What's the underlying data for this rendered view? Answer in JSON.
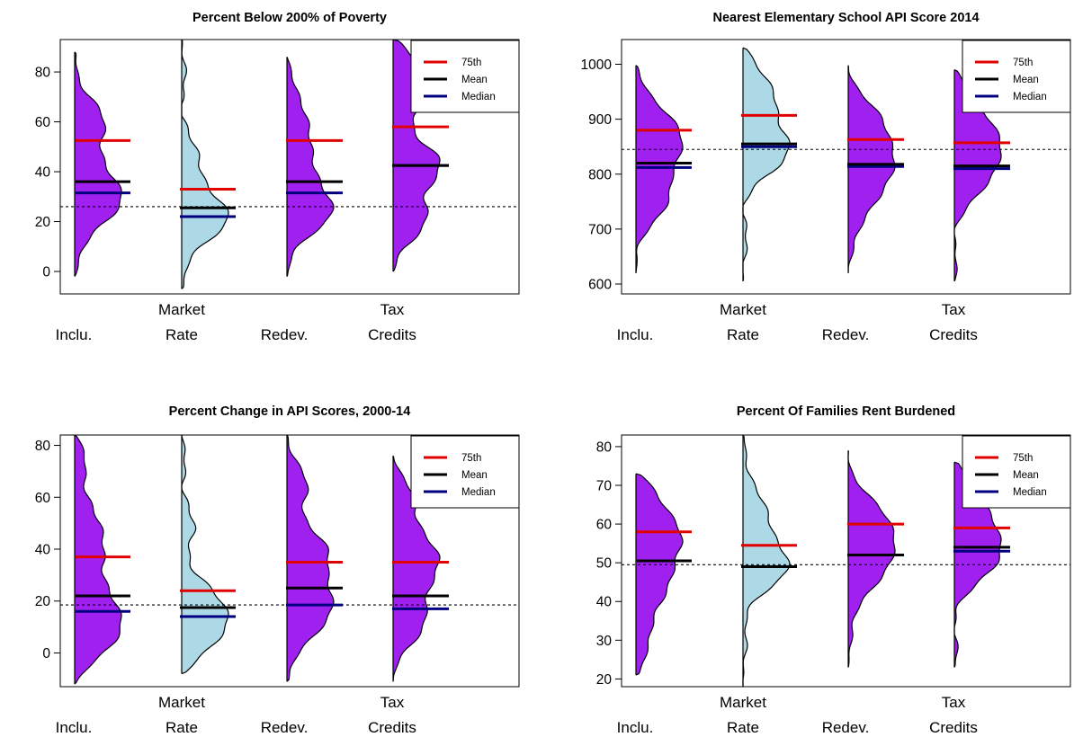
{
  "figure": {
    "background": "#ffffff"
  },
  "legend": [
    {
      "label": "75th",
      "color": "#e00000",
      "stat": "p75"
    },
    {
      "label": "Mean",
      "color": "#000000",
      "stat": "mean"
    },
    {
      "label": "Median",
      "color": "#00007f",
      "stat": "median"
    }
  ],
  "colors": {
    "focus_fill": "#a020f0",
    "market_fill": "#add8e6",
    "outline": "#000000",
    "reference_line": "#000000"
  },
  "chart_data": [
    {
      "type": "violin",
      "title": "Percent Below 200% of Poverty",
      "ylim": [
        -9,
        93
      ],
      "yticks": [
        0,
        20,
        40,
        60,
        80
      ],
      "reference_line": 26,
      "categories": [
        {
          "line1": "",
          "line2": "Inclu.",
          "p75": 52.5,
          "mean": 36,
          "median": 31.5,
          "ymin": -2,
          "ymax": 88,
          "peaks": [
            [
              26,
              1.0
            ],
            [
              44,
              0.45
            ],
            [
              62,
              0.55
            ]
          ]
        },
        {
          "line1": "Market",
          "line2": "Rate",
          "p75": 33,
          "mean": 25.5,
          "median": 22,
          "ymin": -7,
          "ymax": 95,
          "peaks": [
            [
              20,
              1.0
            ],
            [
              40,
              0.35
            ]
          ]
        },
        {
          "line1": "",
          "line2": "Redev.",
          "p75": 52.5,
          "mean": 36,
          "median": 31.5,
          "ymin": -2,
          "ymax": 86,
          "peaks": [
            [
              23,
              1.0
            ],
            [
              40,
              0.5
            ],
            [
              62,
              0.5
            ]
          ]
        },
        {
          "line1": "Tax",
          "line2": "Credits",
          "p75": 58,
          "mean": 42.5,
          "median": 42.5,
          "ymin": 0,
          "ymax": 93,
          "peaks": [
            [
              20,
              0.6
            ],
            [
              42,
              0.8
            ],
            [
              72,
              0.65
            ],
            [
              85,
              0.45
            ]
          ]
        }
      ]
    },
    {
      "type": "violin",
      "title": "Nearest Elementary School API Score 2014",
      "ylim": [
        582,
        1045
      ],
      "yticks": [
        600,
        700,
        800,
        900,
        1000
      ],
      "reference_line": 845,
      "categories": [
        {
          "line1": "",
          "line2": "Inclu.",
          "p75": 880,
          "mean": 820,
          "median": 812,
          "ymin": 620,
          "ymax": 998,
          "peaks": [
            [
              755,
              0.8
            ],
            [
              830,
              0.7
            ],
            [
              895,
              1.0
            ]
          ]
        },
        {
          "line1": "Market",
          "line2": "Rate",
          "p75": 907,
          "mean": 855,
          "median": 850,
          "ymin": 605,
          "ymax": 1030,
          "peaks": [
            [
              850,
              1.0
            ],
            [
              940,
              0.5
            ],
            [
              990,
              0.35
            ]
          ]
        },
        {
          "line1": "",
          "line2": "Redev.",
          "p75": 863,
          "mean": 818,
          "median": 814,
          "ymin": 620,
          "ymax": 998,
          "peaks": [
            [
              750,
              0.6
            ],
            [
              830,
              0.9
            ],
            [
              900,
              0.7
            ]
          ]
        },
        {
          "line1": "Tax",
          "line2": "Credits",
          "p75": 857,
          "mean": 815,
          "median": 810,
          "ymin": 605,
          "ymax": 990,
          "peaks": [
            [
              800,
              0.8
            ],
            [
              860,
              0.9
            ],
            [
              930,
              0.6
            ]
          ]
        }
      ]
    },
    {
      "type": "violin",
      "title": "Percent Change in API Scores, 2000-14",
      "ylim": [
        -13,
        84
      ],
      "yticks": [
        0,
        20,
        40,
        60,
        80
      ],
      "reference_line": 18.5,
      "categories": [
        {
          "line1": "",
          "line2": "Inclu.",
          "p75": 37,
          "mean": 22,
          "median": 16,
          "ymin": -12,
          "ymax": 84,
          "peaks": [
            [
              6,
              1.0
            ],
            [
              18,
              0.55
            ],
            [
              38,
              0.6
            ],
            [
              55,
              0.3
            ],
            [
              75,
              0.25
            ]
          ]
        },
        {
          "line1": "Market",
          "line2": "Rate",
          "p75": 24,
          "mean": 17.5,
          "median": 14,
          "ymin": -8,
          "ymax": 84,
          "peaks": [
            [
              8,
              1.0
            ],
            [
              22,
              0.4
            ],
            [
              50,
              0.15
            ]
          ]
        },
        {
          "line1": "",
          "line2": "Redev.",
          "p75": 35,
          "mean": 25,
          "median": 18.5,
          "ymin": -11,
          "ymax": 84,
          "peaks": [
            [
              8,
              0.6
            ],
            [
              22,
              0.9
            ],
            [
              40,
              0.8
            ],
            [
              65,
              0.5
            ]
          ]
        },
        {
          "line1": "Tax",
          "line2": "Credits",
          "p75": 35,
          "mean": 22,
          "median": 17,
          "ymin": -11,
          "ymax": 76,
          "peaks": [
            [
              10,
              0.6
            ],
            [
              25,
              0.55
            ],
            [
              40,
              0.8
            ],
            [
              60,
              0.45
            ]
          ]
        }
      ]
    },
    {
      "type": "violin",
      "title": "Percent Of Families Rent Burdened",
      "ylim": [
        18,
        83
      ],
      "yticks": [
        20,
        30,
        40,
        50,
        60,
        70,
        80
      ],
      "reference_line": 49.5,
      "categories": [
        {
          "line1": "",
          "line2": "Inclu.",
          "p75": 58,
          "mean": 50.5,
          "median": 50.5,
          "ymin": 21,
          "ymax": 73,
          "peaks": [
            [
              28,
              0.4
            ],
            [
              45,
              0.8
            ],
            [
              58,
              1.0
            ],
            [
              68,
              0.5
            ]
          ]
        },
        {
          "line1": "Market",
          "line2": "Rate",
          "p75": 54.5,
          "mean": 49,
          "median": 49,
          "ymin": 18,
          "ymax": 83,
          "peaks": [
            [
              49,
              1.0
            ],
            [
              60,
              0.5
            ],
            [
              70,
              0.2
            ]
          ]
        },
        {
          "line1": "",
          "line2": "Redev.",
          "p75": 60,
          "mean": 52,
          "median": 52,
          "ymin": 23,
          "ymax": 79,
          "peaks": [
            [
              45,
              0.6
            ],
            [
              55,
              1.0
            ],
            [
              63,
              0.7
            ]
          ]
        },
        {
          "line1": "Tax",
          "line2": "Credits",
          "p75": 59,
          "mean": 54,
          "median": 53,
          "ymin": 23,
          "ymax": 76,
          "peaks": [
            [
              52,
              1.0
            ],
            [
              62,
              0.6
            ],
            [
              72,
              0.4
            ]
          ]
        }
      ]
    }
  ]
}
